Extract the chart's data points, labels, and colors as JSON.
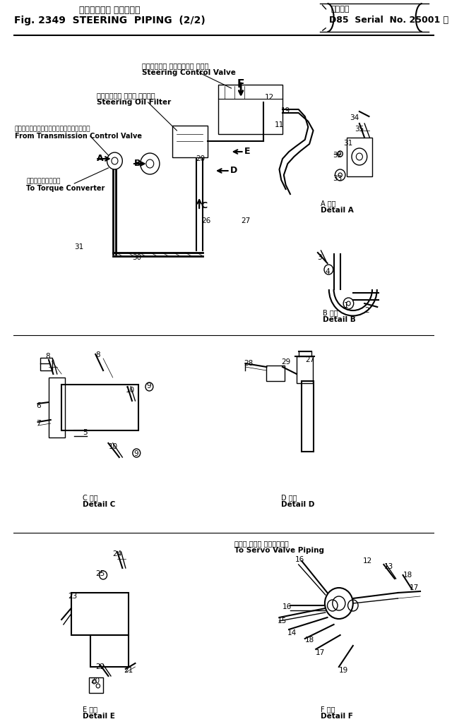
{
  "title_jp": "ステアリング パイピング",
  "title_en": "Fig. 2349  STEERING  PIPING  (2/2)",
  "serial_jp": "適用号機",
  "serial_en": "D85  Serial  No. 25001 ～",
  "bg_color": "#ffffff",
  "line_color": "#000000",
  "text_color": "#000000",
  "labels": {
    "steering_control_jp": "ステアリング コントロール バルブ",
    "steering_control_en": "Steering Control Valve",
    "steering_oil_jp": "ステアリング オイル フィルタ",
    "steering_oil_en": "Steering Oil Filter",
    "from_trans_jp": "トランスミッションコントロールバルブから",
    "from_trans_en": "From Transmission Control Valve",
    "to_torque_jp": "トルクコンバータへ",
    "to_torque_en": "To Torque Converter",
    "to_servo_jp": "サーボ バルブ パイピングへ",
    "to_servo_en": "To Servo Valve Piping",
    "detail_a_jp": "A 詳細",
    "detail_a_en": "Detail A",
    "detail_b_jp": "B 詳細",
    "detail_b_en": "Detail B",
    "detail_c_jp": "C 詳細",
    "detail_c_en": "Detail C",
    "detail_d_jp": "D 詳細",
    "detail_d_en": "Detail D",
    "detail_e_jp": "E 詳細",
    "detail_e_en": "Detail E",
    "detail_f_jp": "F 詳細",
    "detail_f_en": "Detail F"
  }
}
